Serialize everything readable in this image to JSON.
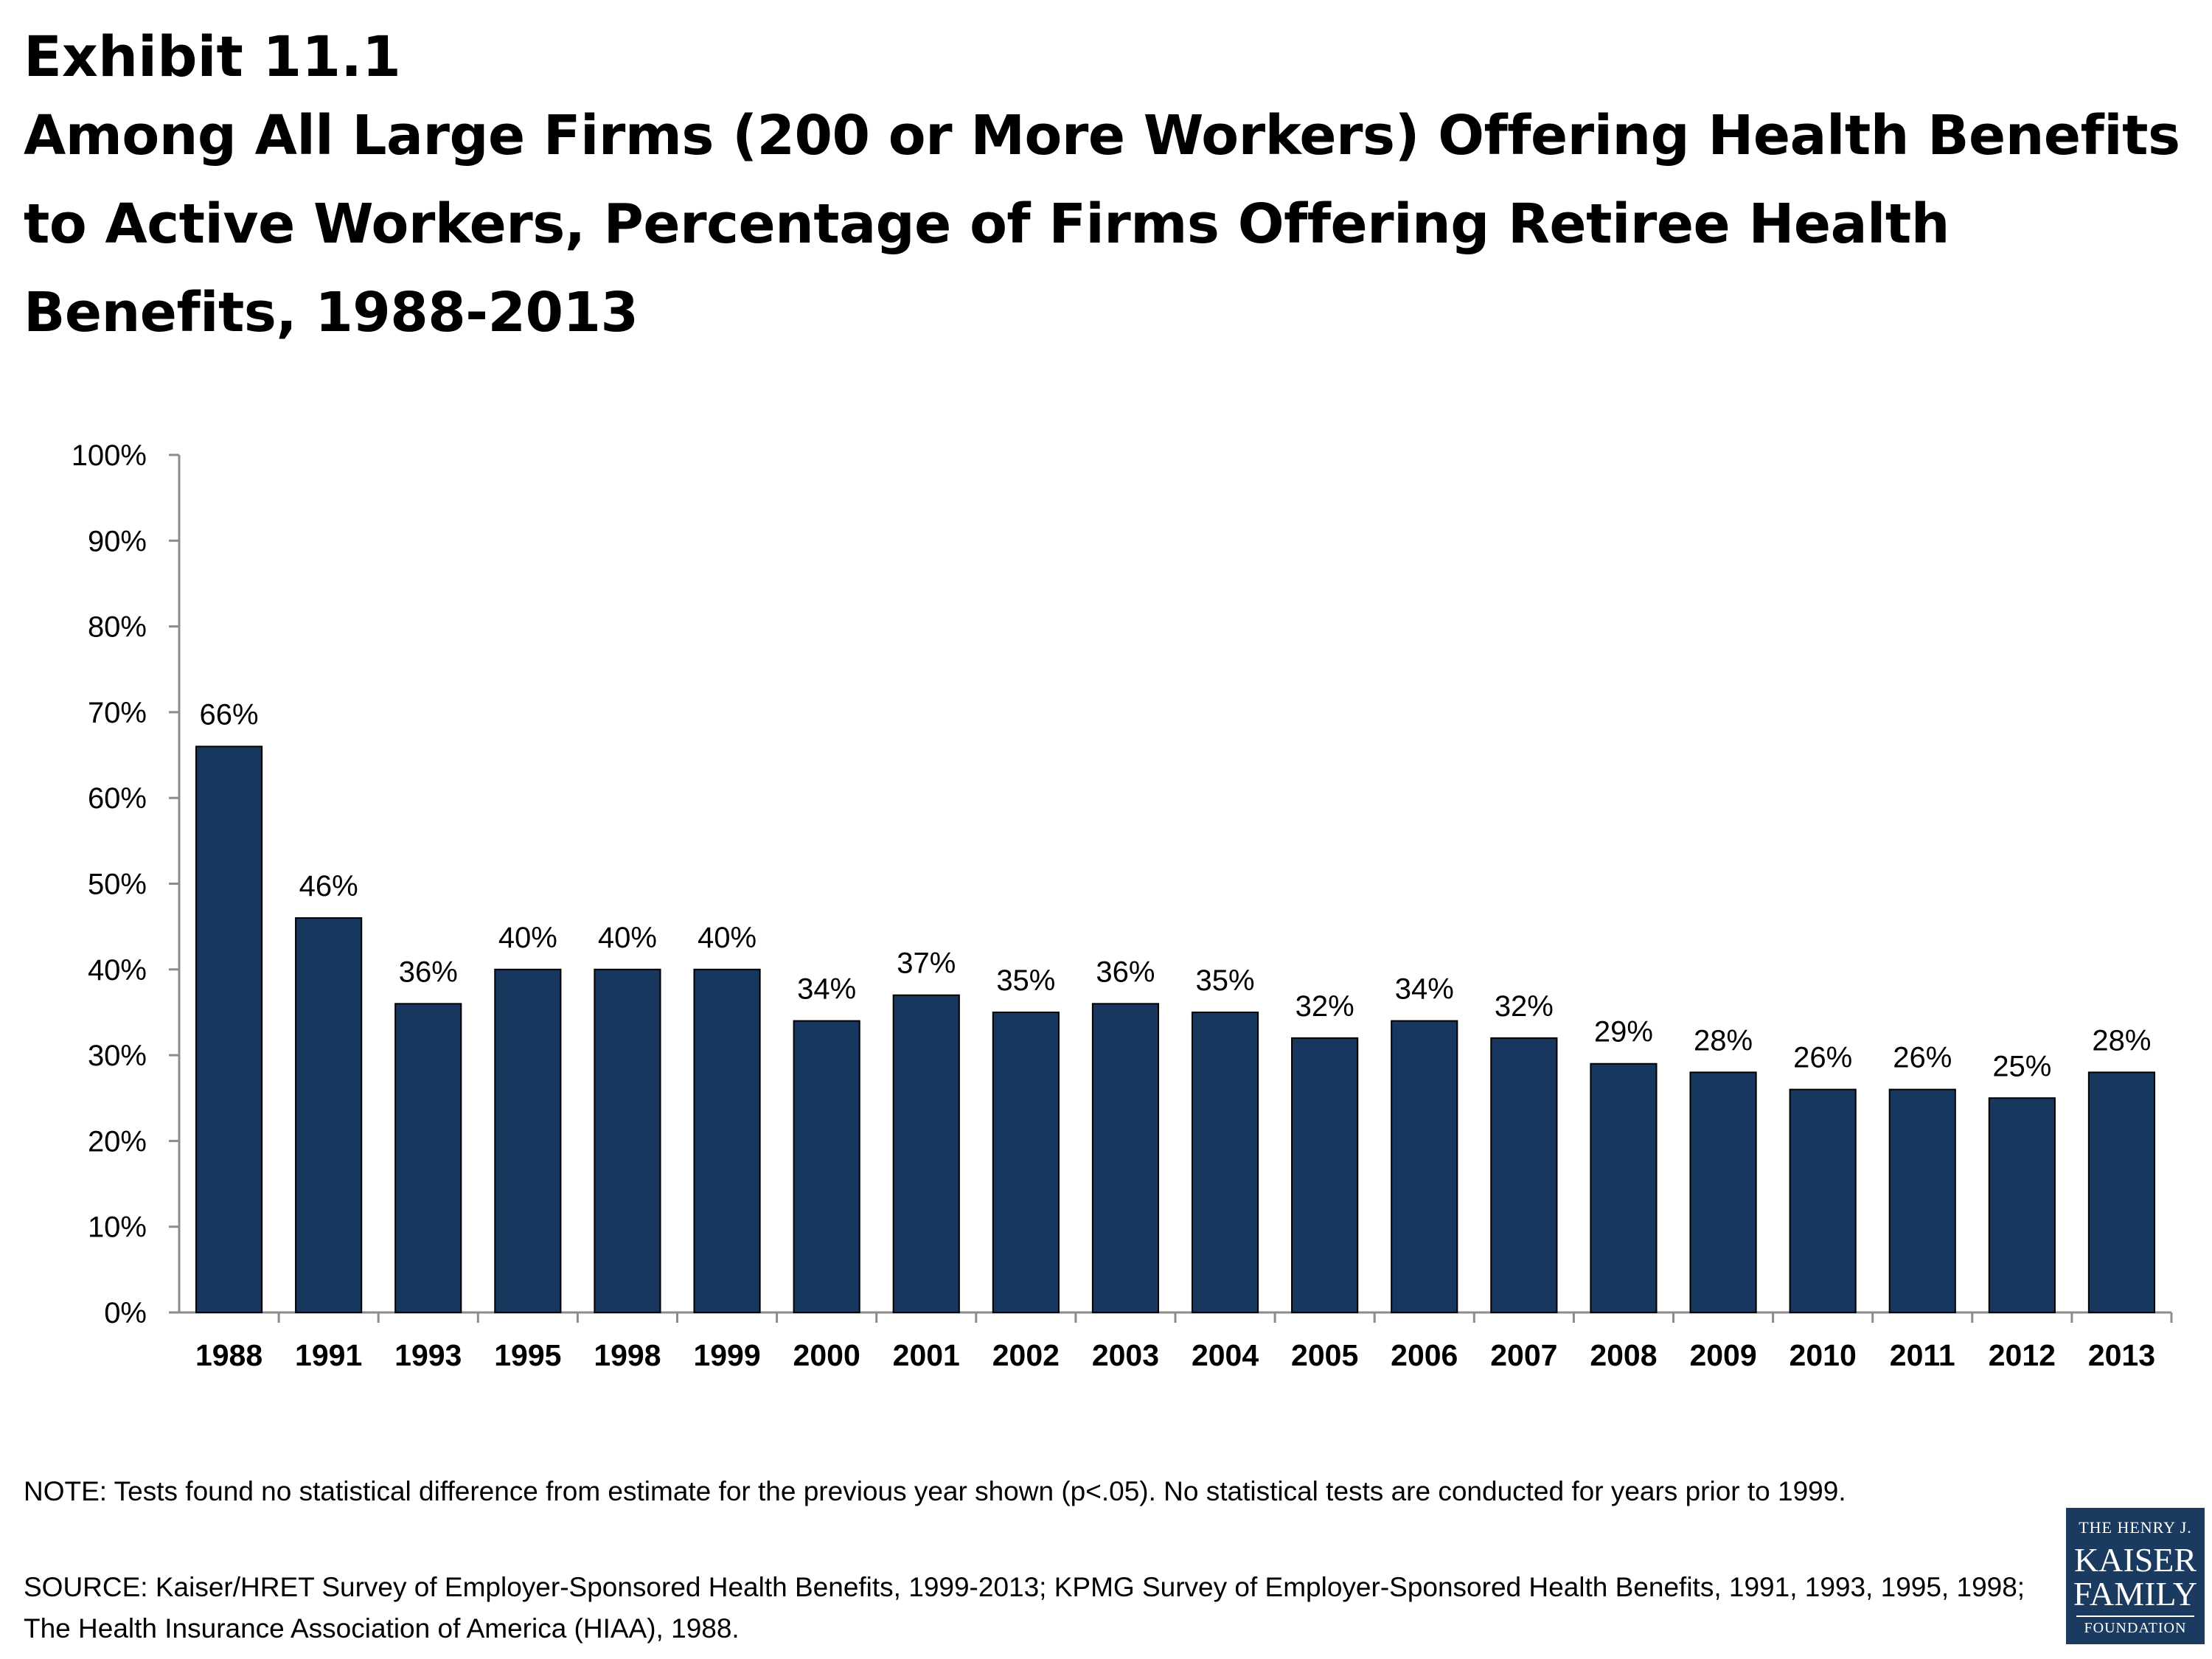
{
  "header": {
    "exhibit": "Exhibit 11.1",
    "title_lines": [
      "Among All Large Firms (200 or More Workers) Offering Health Benefits",
      "to Active Workers, Percentage of Firms Offering Retiree Health",
      "Benefits, 1988-2013"
    ]
  },
  "chart_data": {
    "type": "bar",
    "title": "Among All Large Firms (200 or More Workers) Offering Health Benefits to Active Workers, Percentage of Firms Offering Retiree Health Benefits, 1988-2013",
    "categories": [
      "1988",
      "1991",
      "1993",
      "1995",
      "1998",
      "1999",
      "2000",
      "2001",
      "2002",
      "2003",
      "2004",
      "2005",
      "2006",
      "2007",
      "2008",
      "2009",
      "2010",
      "2011",
      "2012",
      "2013"
    ],
    "values": [
      66,
      46,
      36,
      40,
      40,
      40,
      34,
      37,
      35,
      36,
      35,
      32,
      34,
      32,
      29,
      28,
      26,
      26,
      25,
      28
    ],
    "data_labels": [
      "66%",
      "46%",
      "36%",
      "40%",
      "40%",
      "40%",
      "34%",
      "37%",
      "35%",
      "36%",
      "35%",
      "32%",
      "34%",
      "32%",
      "29%",
      "28%",
      "26%",
      "26%",
      "25%",
      "28%"
    ],
    "ylim": [
      0,
      100
    ],
    "yticks": [
      "0%",
      "10%",
      "20%",
      "30%",
      "40%",
      "50%",
      "60%",
      "70%",
      "80%",
      "90%",
      "100%"
    ],
    "xlabel": "",
    "ylabel": "",
    "grid": false,
    "bar_color": "#17375e"
  },
  "footnotes": {
    "note": "NOTE: Tests found no statistical difference from estimate for the previous year shown (p<.05).  No statistical tests are conducted for years prior to 1999.",
    "source": "SOURCE: Kaiser/HRET Survey of Employer-Sponsored Health Benefits, 1999-2013; KPMG Survey of Employer-Sponsored Health Benefits, 1991, 1993, 1995, 1998; The Health Insurance Association of America (HIAA), 1988."
  },
  "logo": {
    "line1": "THE HENRY J.",
    "line2": "KAISER",
    "line3": "FAMILY",
    "line4": "FOUNDATION"
  }
}
